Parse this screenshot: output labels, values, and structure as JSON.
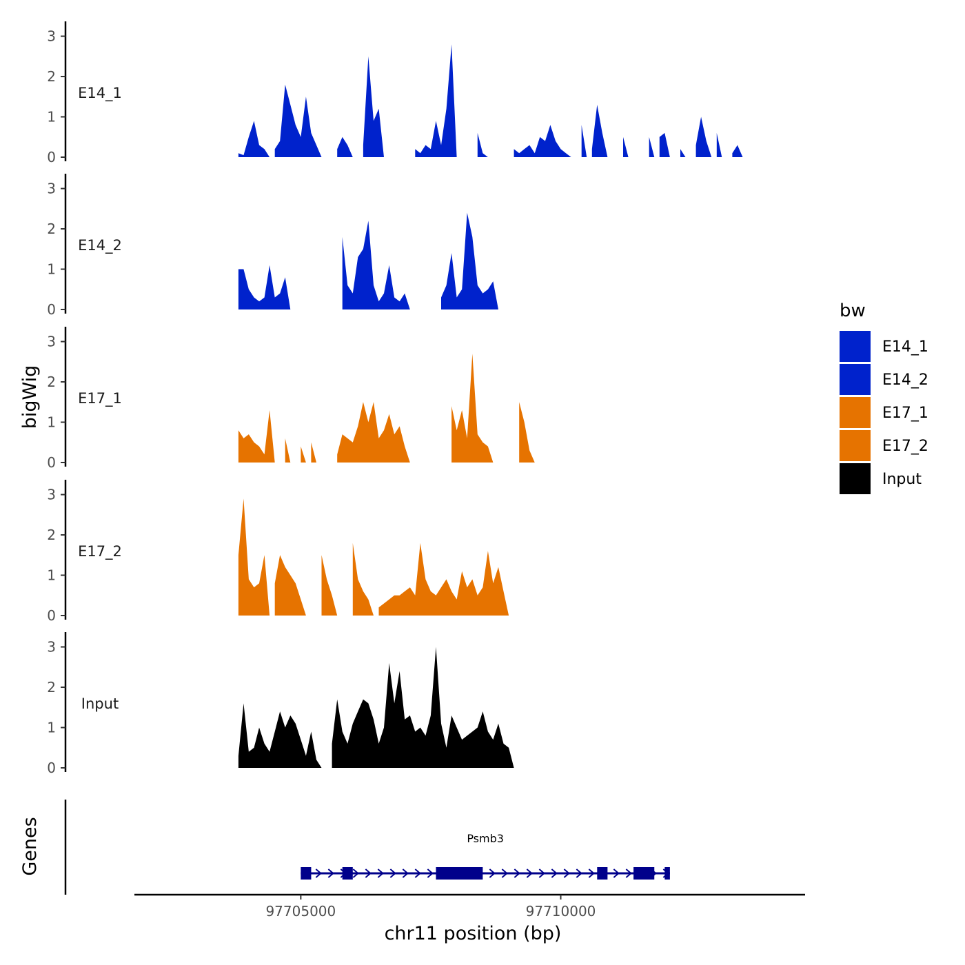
{
  "chart_data": {
    "type": "area",
    "chromosome": "chr11",
    "xlabel": "chr11 position (bp)",
    "ylabel": "bigWig",
    "xlim": [
      97701800,
      97714700
    ],
    "x_ticks": [
      97705000,
      97710000
    ],
    "x_tick_labels": [
      "97705000",
      "97710000"
    ],
    "ylim": [
      0,
      3.3
    ],
    "y_ticks": [
      0,
      1,
      2,
      3
    ],
    "y_tick_labels": [
      "0",
      "1",
      "2",
      "3"
    ],
    "x_start": 97703800,
    "x_end": 97714200,
    "bin_size": 100,
    "legend": {
      "title": "bw",
      "position": "right",
      "entries": [
        {
          "label": "E14_1",
          "color": "#0022cc"
        },
        {
          "label": "E14_2",
          "color": "#0022cc"
        },
        {
          "label": "E17_1",
          "color": "#e67300"
        },
        {
          "label": "E17_2",
          "color": "#e67300"
        },
        {
          "label": "Input",
          "color": "#000000"
        }
      ]
    },
    "series": [
      {
        "name": "E14_1",
        "color": "#0022cc",
        "values": [
          0.1,
          0.05,
          0.5,
          0.9,
          0.3,
          0.2,
          0.0,
          0.2,
          0.4,
          1.8,
          1.3,
          0.8,
          0.5,
          1.5,
          0.6,
          0.3,
          0.0,
          0.0,
          0.0,
          0.2,
          0.5,
          0.3,
          0.0,
          0.0,
          0.3,
          2.5,
          0.9,
          1.2,
          0.0,
          0.0,
          0.0,
          0.0,
          0.0,
          0.0,
          0.2,
          0.1,
          0.3,
          0.2,
          0.9,
          0.3,
          1.2,
          2.8,
          0.0,
          0.0,
          0.0,
          0.0,
          0.6,
          0.1,
          0.0,
          0.0,
          0.0,
          0.0,
          0.0,
          0.2,
          0.1,
          0.2,
          0.3,
          0.1,
          0.5,
          0.4,
          0.8,
          0.4,
          0.2,
          0.1,
          0.0,
          0.0,
          0.8,
          0.0,
          0.2,
          1.3,
          0.6,
          0.0,
          0.0,
          0.0,
          0.5,
          0.0,
          0.0,
          0.0,
          0.0,
          0.5,
          0.0,
          0.5,
          0.6,
          0.0,
          0.0,
          0.2,
          0.0,
          0.0,
          0.3,
          1.0,
          0.4,
          0.0,
          0.6,
          0.0,
          0.0,
          0.1,
          0.3,
          0.0,
          0.0,
          0.0,
          0.0,
          0.0,
          0.0,
          0.0,
          0.0
        ]
      },
      {
        "name": "E14_2",
        "color": "#0022cc",
        "values": [
          1.0,
          1.0,
          0.5,
          0.3,
          0.2,
          0.3,
          1.1,
          0.3,
          0.4,
          0.8,
          0.0,
          0.0,
          0.0,
          0.0,
          0.0,
          0.0,
          0.0,
          0.0,
          0.0,
          0.0,
          1.8,
          0.6,
          0.4,
          1.3,
          1.5,
          2.2,
          0.6,
          0.2,
          0.4,
          1.1,
          0.3,
          0.2,
          0.4,
          0.0,
          0.0,
          0.0,
          0.0,
          0.0,
          0.0,
          0.3,
          0.6,
          1.4,
          0.3,
          0.5,
          2.4,
          1.8,
          0.6,
          0.4,
          0.5,
          0.7,
          0.0,
          0.0,
          0.0,
          0.0,
          0.0,
          0.0,
          0.0,
          0.0,
          0.0,
          0.0,
          0.0,
          0.0,
          0.0,
          0.0,
          0.0,
          0.0,
          0.0,
          0.0,
          0.0,
          0.0,
          0.0,
          0.0,
          0.0,
          0.0,
          0.0,
          0.0,
          0.0,
          0.0,
          0.0,
          0.0,
          0.0,
          0.0,
          0.0,
          0.0,
          0.0,
          0.0,
          0.0,
          0.0,
          0.0,
          0.0,
          0.0,
          0.0,
          0.0,
          0.0,
          0.0,
          0.0,
          0.0,
          0.0,
          0.0,
          0.0,
          0.0,
          0.0,
          0.0,
          0.0,
          0.0
        ]
      },
      {
        "name": "E17_1",
        "color": "#e67300",
        "values": [
          0.8,
          0.6,
          0.7,
          0.5,
          0.4,
          0.2,
          1.3,
          0.0,
          0.0,
          0.6,
          0.0,
          0.0,
          0.4,
          0.0,
          0.5,
          0.0,
          0.0,
          0.0,
          0.0,
          0.2,
          0.7,
          0.6,
          0.5,
          0.9,
          1.5,
          1.0,
          1.5,
          0.6,
          0.8,
          1.2,
          0.7,
          0.9,
          0.4,
          0.0,
          0.0,
          0.0,
          0.0,
          0.0,
          0.0,
          0.0,
          0.0,
          1.4,
          0.8,
          1.3,
          0.6,
          2.7,
          0.7,
          0.5,
          0.4,
          0.0,
          0.0,
          0.0,
          0.0,
          0.0,
          1.5,
          1.0,
          0.3,
          0.0,
          0.0,
          0.0,
          0.0,
          0.0,
          0.0,
          0.0,
          0.0,
          0.0,
          0.0,
          0.0,
          0.0,
          0.0,
          0.0,
          0.0,
          0.0,
          0.0,
          0.0,
          0.0,
          0.0,
          0.0,
          0.0,
          0.0,
          0.0,
          0.0,
          0.0,
          0.0,
          0.0,
          0.0,
          0.0,
          0.0,
          0.0,
          0.0,
          0.0,
          0.0,
          0.0,
          0.0,
          0.0,
          0.0,
          0.0,
          0.0,
          0.0,
          0.0,
          0.0,
          0.0,
          0.0,
          0.0,
          0.0
        ]
      },
      {
        "name": "E17_2",
        "color": "#e67300",
        "values": [
          1.5,
          2.9,
          0.9,
          0.7,
          0.8,
          1.5,
          0.0,
          0.8,
          1.5,
          1.2,
          1.0,
          0.8,
          0.4,
          0.0,
          0.0,
          0.0,
          1.5,
          0.9,
          0.5,
          0.0,
          0.0,
          0.0,
          1.8,
          0.9,
          0.6,
          0.4,
          0.0,
          0.2,
          0.3,
          0.4,
          0.5,
          0.5,
          0.6,
          0.7,
          0.5,
          1.8,
          0.9,
          0.6,
          0.5,
          0.7,
          0.9,
          0.6,
          0.4,
          1.1,
          0.7,
          0.9,
          0.5,
          0.7,
          1.6,
          0.8,
          1.2,
          0.6,
          0.0,
          0.0,
          0.0,
          0.0,
          0.0,
          0.0,
          0.0,
          0.0,
          0.0,
          0.0,
          0.0,
          0.0,
          0.0,
          0.0,
          0.0,
          0.0,
          0.0,
          0.0,
          0.0,
          0.0,
          0.0,
          0.0,
          0.0,
          0.0,
          0.0,
          0.0,
          0.0,
          0.0,
          0.0,
          0.0,
          0.0,
          0.0,
          0.0,
          0.0,
          0.0,
          0.0,
          0.0,
          0.0,
          0.0,
          0.0,
          0.0,
          0.0,
          0.0,
          0.0,
          0.0,
          0.0,
          0.0,
          0.0,
          0.0,
          0.0,
          0.0,
          0.0,
          0.0
        ]
      },
      {
        "name": "Input",
        "color": "#000000",
        "values": [
          0.3,
          1.6,
          0.4,
          0.5,
          1.0,
          0.6,
          0.4,
          0.9,
          1.4,
          1.0,
          1.3,
          1.1,
          0.7,
          0.3,
          0.9,
          0.2,
          0.0,
          0.0,
          0.6,
          1.7,
          0.9,
          0.6,
          1.1,
          1.4,
          1.7,
          1.6,
          1.2,
          0.6,
          1.0,
          2.6,
          1.6,
          2.4,
          1.2,
          1.3,
          0.9,
          1.0,
          0.8,
          1.3,
          3.0,
          1.1,
          0.5,
          1.3,
          1.0,
          0.7,
          0.8,
          0.9,
          1.0,
          1.4,
          0.9,
          0.7,
          1.1,
          0.6,
          0.5,
          0.0,
          0.0,
          0.0,
          0.0,
          0.0,
          0.0,
          0.0,
          0.0,
          0.0,
          0.0,
          0.0,
          0.0,
          0.0,
          0.0,
          0.0,
          0.0,
          0.0,
          0.0,
          0.0,
          0.0,
          0.0,
          0.0,
          0.0,
          0.0,
          0.0,
          0.0,
          0.0,
          0.0,
          0.0,
          0.0,
          0.0,
          0.0,
          0.0,
          0.0,
          0.0,
          0.0,
          0.0,
          0.0,
          0.0,
          0.0,
          0.0,
          0.0,
          0.0,
          0.0,
          0.0,
          0.0,
          0.0,
          0.0,
          0.0,
          0.0,
          0.0,
          0.0
        ]
      }
    ],
    "genes": {
      "label": "Genes",
      "items": [
        {
          "name": "Psmb3",
          "strand": "+",
          "start": 97705000,
          "end": 97712100,
          "exons": [
            [
              97705000,
              97705200
            ],
            [
              97705800,
              97706000
            ],
            [
              97707600,
              97708500
            ],
            [
              97710700,
              97710900
            ],
            [
              97711400,
              97711800
            ],
            [
              97712000,
              97712100
            ]
          ],
          "color": "#00008b"
        }
      ]
    }
  }
}
